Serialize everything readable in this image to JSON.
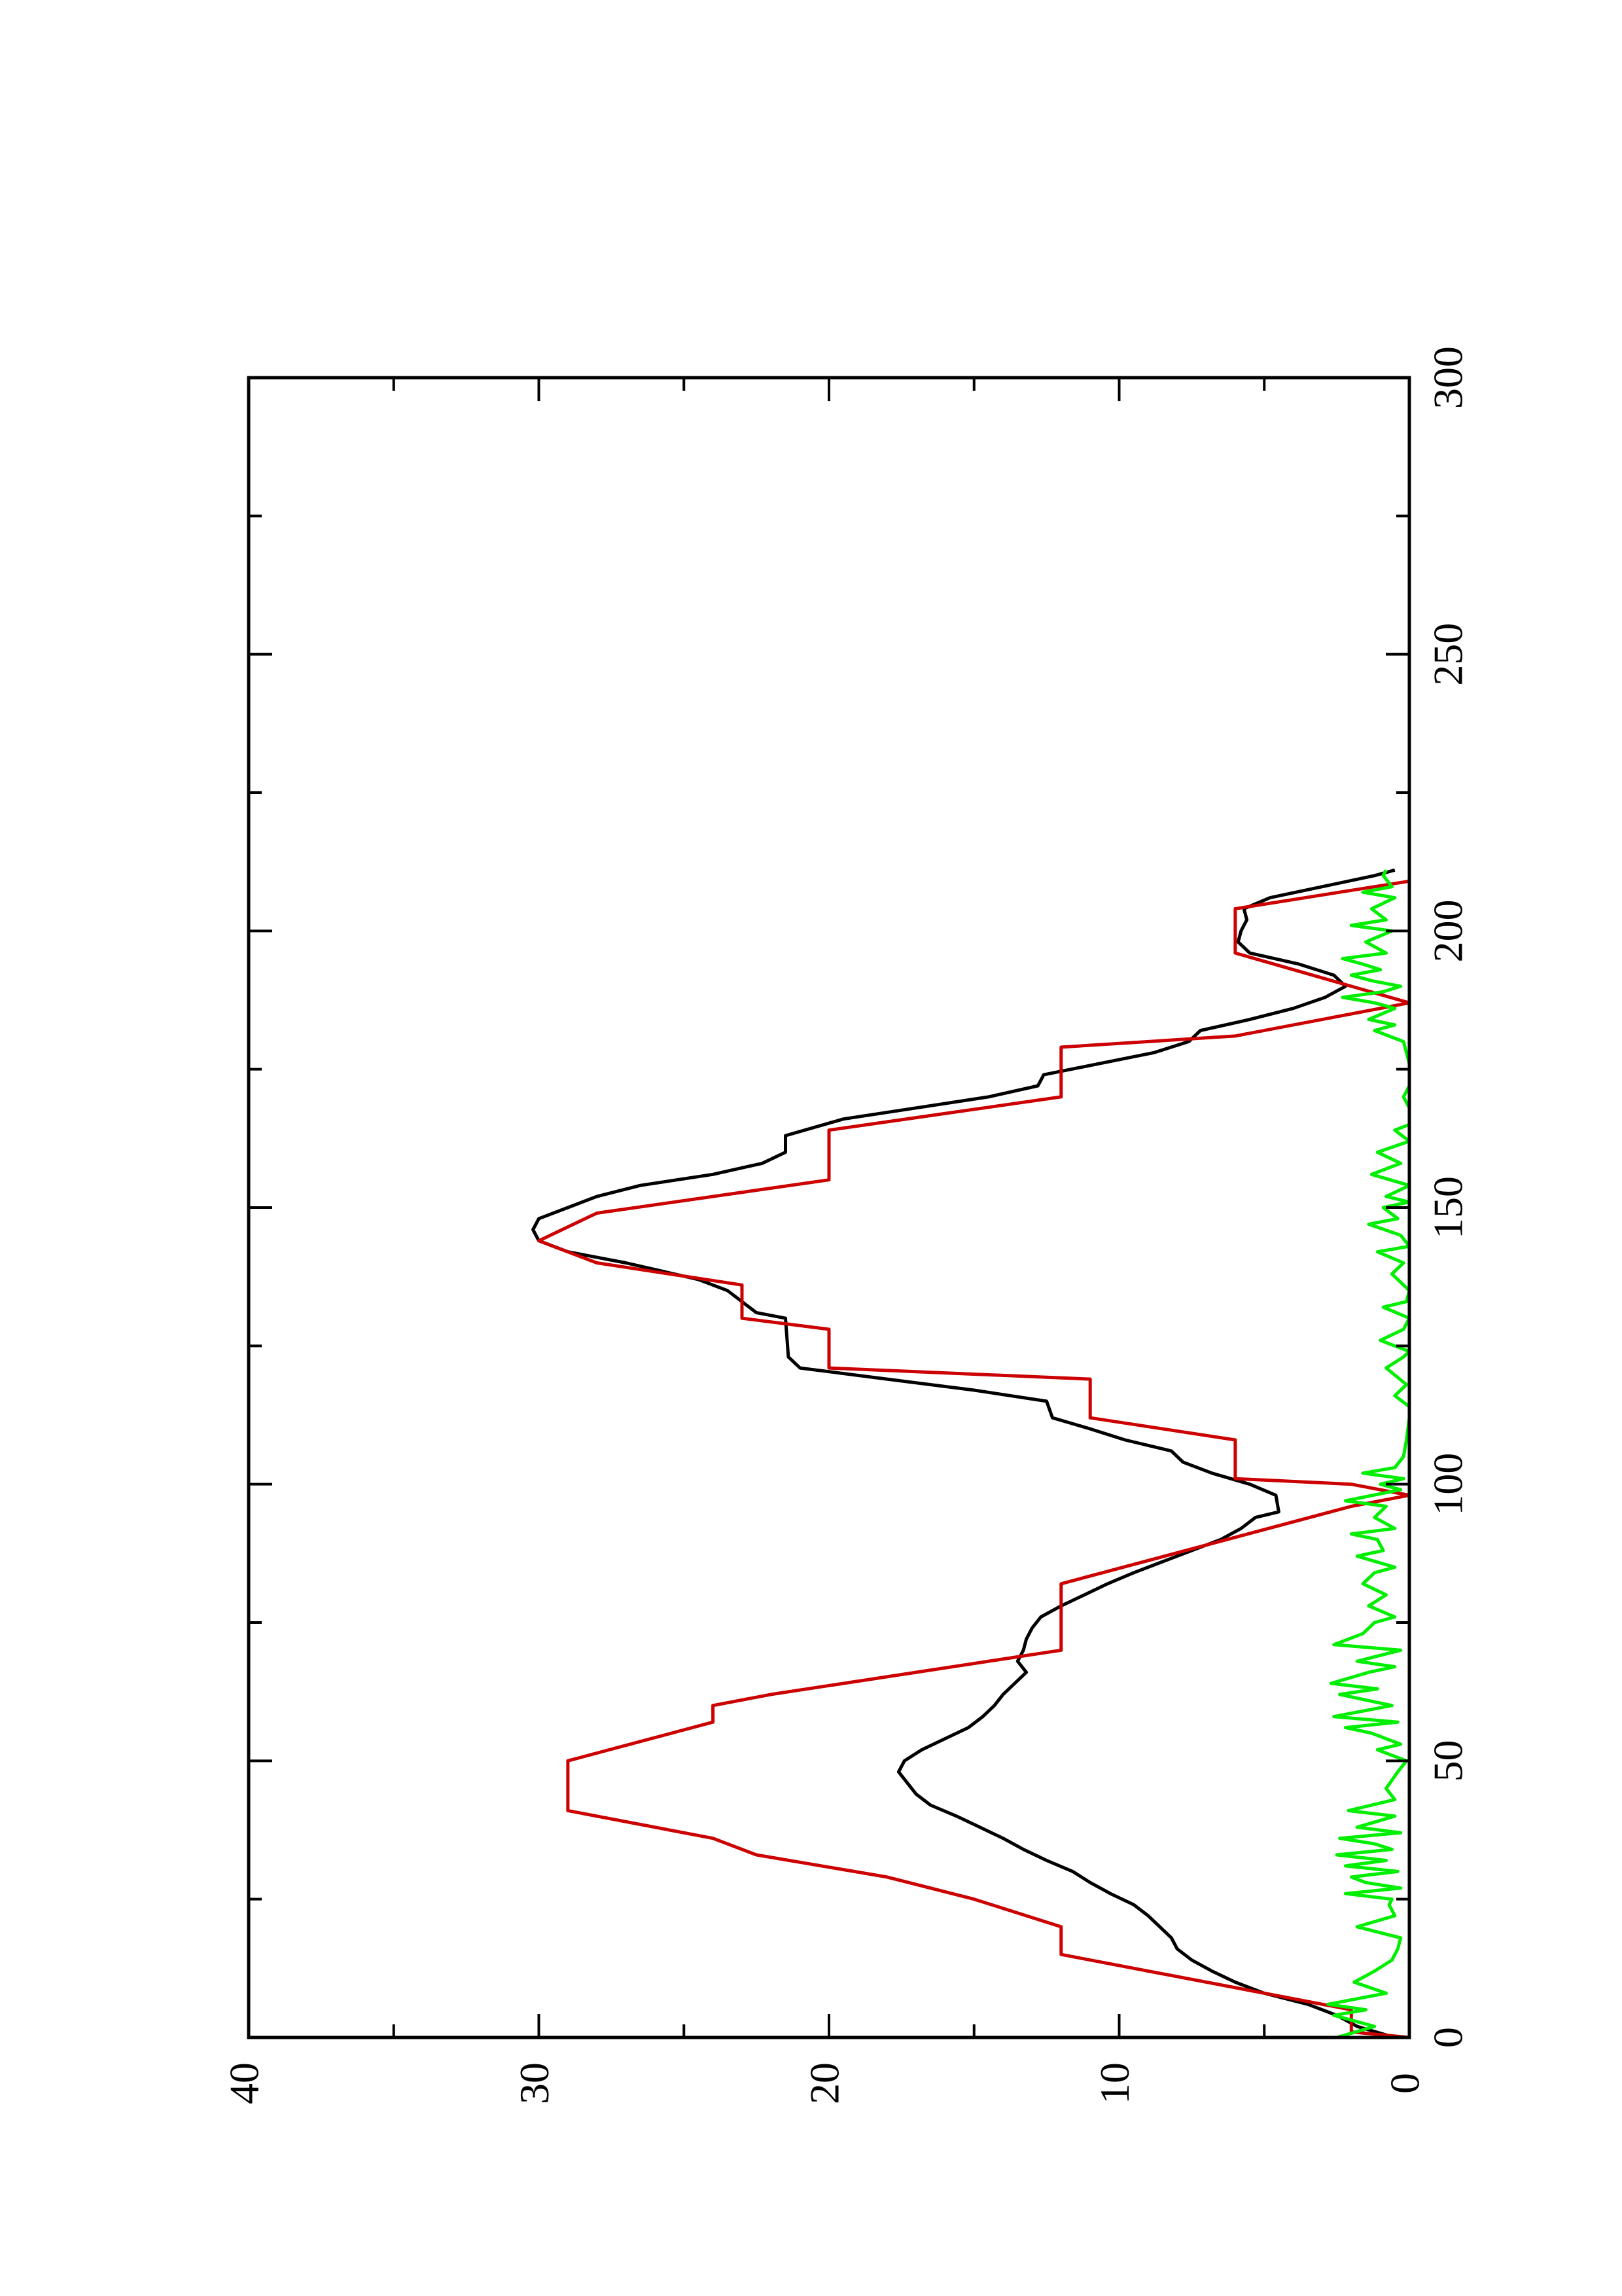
{
  "chart_data": {
    "type": "line",
    "orientation": "rotated-90-ccw",
    "title": "",
    "xlabel": "",
    "ylabel": "",
    "xlim": [
      0,
      300
    ],
    "ylim": [
      0,
      40
    ],
    "x_ticks_major": [
      0,
      50,
      100,
      150,
      200,
      250,
      300
    ],
    "x_tick_labels": [
      "0",
      "50",
      "100",
      "150",
      "200",
      "250",
      "300"
    ],
    "x_ticks_minor": [
      25,
      75,
      125,
      175,
      225,
      275
    ],
    "y_ticks_major": [
      0,
      10,
      20,
      30,
      40
    ],
    "y_tick_labels": [
      "0",
      "10",
      "20",
      "30",
      "40"
    ],
    "y_ticks_minor": [
      5,
      15,
      25,
      35
    ],
    "grid": false,
    "legend": "none",
    "series": [
      {
        "color": "#000000",
        "points": [
          [
            0,
            0.5
          ],
          [
            2,
            1.8
          ],
          [
            4,
            2.5
          ],
          [
            6,
            3.5
          ],
          [
            8,
            5
          ],
          [
            10,
            6
          ],
          [
            12,
            6.8
          ],
          [
            14,
            7.5
          ],
          [
            16,
            8
          ],
          [
            18,
            8.2
          ],
          [
            20,
            8.6
          ],
          [
            22,
            9
          ],
          [
            24,
            9.5
          ],
          [
            26,
            10.3
          ],
          [
            28,
            11
          ],
          [
            30,
            11.6
          ],
          [
            32,
            12.5
          ],
          [
            34,
            13.3
          ],
          [
            36,
            14
          ],
          [
            38,
            14.8
          ],
          [
            40,
            15.6
          ],
          [
            42,
            16.5
          ],
          [
            44,
            17
          ],
          [
            46,
            17.3
          ],
          [
            48,
            17.6
          ],
          [
            50,
            17.4
          ],
          [
            52,
            16.8
          ],
          [
            54,
            16
          ],
          [
            56,
            15.2
          ],
          [
            58,
            14.7
          ],
          [
            60,
            14.3
          ],
          [
            62,
            14
          ],
          [
            64,
            13.6
          ],
          [
            66,
            13.2
          ],
          [
            68,
            13.5
          ],
          [
            70,
            13.3
          ],
          [
            72,
            13.2
          ],
          [
            74,
            13
          ],
          [
            76,
            12.7
          ],
          [
            78,
            12
          ],
          [
            80,
            11.2
          ],
          [
            82,
            10.4
          ],
          [
            84,
            9.5
          ],
          [
            86,
            8.5
          ],
          [
            88,
            7.5
          ],
          [
            90,
            6.5
          ],
          [
            92,
            5.8
          ],
          [
            94,
            5.3
          ],
          [
            95,
            4.5
          ],
          [
            98,
            4.6
          ],
          [
            100,
            5.5
          ],
          [
            102,
            6.8
          ],
          [
            104,
            7.8
          ],
          [
            106,
            8.2
          ],
          [
            108,
            9.8
          ],
          [
            110,
            11
          ],
          [
            112,
            12.3
          ],
          [
            115,
            12.5
          ],
          [
            117,
            15
          ],
          [
            119,
            18
          ],
          [
            121,
            21
          ],
          [
            123,
            21.4
          ],
          [
            130,
            21.5
          ],
          [
            131,
            22.5
          ],
          [
            135,
            23.5
          ],
          [
            137,
            24.5
          ],
          [
            140,
            27
          ],
          [
            142,
            29
          ],
          [
            144,
            30
          ],
          [
            146,
            30.2
          ],
          [
            148,
            30
          ],
          [
            150,
            29
          ],
          [
            152,
            28
          ],
          [
            154,
            26.5
          ],
          [
            156,
            24
          ],
          [
            158,
            22.3
          ],
          [
            160,
            21.5
          ],
          [
            163,
            21.5
          ],
          [
            166,
            19.5
          ],
          [
            168,
            17
          ],
          [
            170,
            14.5
          ],
          [
            172,
            12.8
          ],
          [
            174,
            12.6
          ],
          [
            176,
            10.7
          ],
          [
            178,
            8.8
          ],
          [
            180,
            7.6
          ],
          [
            182,
            7.2
          ],
          [
            184,
            5.5
          ],
          [
            186,
            4
          ],
          [
            188,
            2.9
          ],
          [
            190,
            2.2
          ],
          [
            192,
            2.6
          ],
          [
            194,
            3.8
          ],
          [
            196,
            5.5
          ],
          [
            198,
            5.9
          ],
          [
            200,
            5.8
          ],
          [
            202,
            5.6
          ],
          [
            204,
            5.7
          ],
          [
            206,
            4.8
          ],
          [
            208,
            3
          ],
          [
            210,
            1.2
          ],
          [
            211,
            0.5
          ]
        ]
      },
      {
        "color": "#cc0000",
        "points": [
          [
            0,
            0
          ],
          [
            1,
            2
          ],
          [
            5,
            2
          ],
          [
            15,
            12
          ],
          [
            20,
            12
          ],
          [
            25,
            15
          ],
          [
            29,
            18
          ],
          [
            33,
            22.5
          ],
          [
            36,
            24
          ],
          [
            41,
            29
          ],
          [
            50,
            29
          ],
          [
            57,
            24
          ],
          [
            60,
            24
          ],
          [
            62,
            22
          ],
          [
            70,
            12
          ],
          [
            82,
            12
          ],
          [
            96,
            2
          ],
          [
            98,
            0
          ],
          [
            100,
            2
          ],
          [
            101,
            6
          ],
          [
            108,
            6
          ],
          [
            112,
            11
          ],
          [
            119,
            11
          ],
          [
            121,
            20
          ],
          [
            128,
            20
          ],
          [
            130,
            23
          ],
          [
            136,
            23
          ],
          [
            140,
            28
          ],
          [
            144,
            30
          ],
          [
            149,
            28
          ],
          [
            155,
            20
          ],
          [
            164,
            20
          ],
          [
            170,
            12
          ],
          [
            179,
            12
          ],
          [
            181,
            6
          ],
          [
            187,
            0
          ],
          [
            190,
            2
          ],
          [
            196,
            6
          ],
          [
            204,
            6
          ],
          [
            209,
            0
          ]
        ]
      },
      {
        "color": "#00ee00",
        "points": [
          [
            0,
            2.5
          ],
          [
            2,
            1.2
          ],
          [
            4,
            2.6
          ],
          [
            5,
            1.5
          ],
          [
            6,
            2.8
          ],
          [
            8,
            0.8
          ],
          [
            10,
            1.9
          ],
          [
            12,
            1.2
          ],
          [
            14,
            0.6
          ],
          [
            16,
            0.4
          ],
          [
            18,
            0.3
          ],
          [
            20,
            1.8
          ],
          [
            22,
            0.5
          ],
          [
            24,
            0.7
          ],
          [
            25,
            0.6
          ],
          [
            26,
            2.2
          ],
          [
            27,
            0.3
          ],
          [
            28,
            1.5
          ],
          [
            29,
            2
          ],
          [
            30,
            0.4
          ],
          [
            31,
            2.2
          ],
          [
            32,
            0.8
          ],
          [
            33,
            2.5
          ],
          [
            34,
            0.6
          ],
          [
            35,
            1.2
          ],
          [
            36,
            2.4
          ],
          [
            37,
            0.3
          ],
          [
            38,
            1.8
          ],
          [
            40,
            0.5
          ],
          [
            41,
            2.1
          ],
          [
            43,
            0.5
          ],
          [
            45,
            0.8
          ],
          [
            48,
            0.4
          ],
          [
            50,
            0.1
          ],
          [
            52,
            1.1
          ],
          [
            53,
            0.3
          ],
          [
            55,
            1.3
          ],
          [
            56,
            2.2
          ],
          [
            57,
            0.4
          ],
          [
            58,
            2.6
          ],
          [
            60,
            0.6
          ],
          [
            62,
            2.4
          ],
          [
            63,
            1.1
          ],
          [
            64,
            2.7
          ],
          [
            66,
            1.4
          ],
          [
            67,
            0.5
          ],
          [
            68,
            1.8
          ],
          [
            70,
            0.3
          ],
          [
            71,
            2.6
          ],
          [
            73,
            1.6
          ],
          [
            75,
            1.2
          ],
          [
            76,
            0.5
          ],
          [
            78,
            1.4
          ],
          [
            80,
            0.8
          ],
          [
            82,
            1.6
          ],
          [
            84,
            1.2
          ],
          [
            85,
            0.5
          ],
          [
            87,
            1.8
          ],
          [
            88,
            0.9
          ],
          [
            90,
            1.1
          ],
          [
            91,
            2
          ],
          [
            92,
            0.5
          ],
          [
            94,
            1.2
          ],
          [
            96,
            0.8
          ],
          [
            97,
            2.2
          ],
          [
            99,
            0.3
          ],
          [
            100,
            1
          ],
          [
            101,
            0.2
          ],
          [
            102,
            1.6
          ],
          [
            103,
            0.5
          ],
          [
            105,
            0.2
          ],
          [
            108,
            0.1
          ],
          [
            112,
            0
          ],
          [
            114,
            0
          ],
          [
            116,
            0.5
          ],
          [
            118,
            0.1
          ],
          [
            121,
            0.8
          ],
          [
            123,
            0.2
          ],
          [
            124,
            0
          ],
          [
            126,
            1
          ],
          [
            128,
            0.2
          ],
          [
            130,
            0
          ],
          [
            132,
            0.9
          ],
          [
            133,
            0.1
          ],
          [
            135,
            0
          ],
          [
            138,
            0.6
          ],
          [
            140,
            0.2
          ],
          [
            142,
            1.1
          ],
          [
            143,
            0
          ],
          [
            145,
            0.3
          ],
          [
            147,
            1.4
          ],
          [
            148,
            0.4
          ],
          [
            150,
            0.9
          ],
          [
            151,
            0
          ],
          [
            152,
            0.8
          ],
          [
            154,
            0
          ],
          [
            156,
            1.3
          ],
          [
            158,
            0.3
          ],
          [
            160,
            1.1
          ],
          [
            162,
            0
          ],
          [
            164,
            0.5
          ],
          [
            165,
            0
          ],
          [
            168,
            0
          ],
          [
            170,
            0.2
          ],
          [
            172,
            0
          ],
          [
            176,
            0
          ],
          [
            180,
            0.2
          ],
          [
            182,
            1.2
          ],
          [
            183,
            0.5
          ],
          [
            184,
            1.4
          ],
          [
            186,
            0.5
          ],
          [
            187,
            1.2
          ],
          [
            188,
            2.3
          ],
          [
            189,
            0.9
          ],
          [
            190,
            0.3
          ],
          [
            191,
            1.3
          ],
          [
            192,
            2
          ],
          [
            193,
            1
          ],
          [
            194,
            1.6
          ],
          [
            195,
            2.3
          ],
          [
            196,
            0.8
          ],
          [
            198,
            1.5
          ],
          [
            200,
            0.6
          ],
          [
            201,
            2
          ],
          [
            202,
            0.8
          ],
          [
            204,
            1.3
          ],
          [
            206,
            0.5
          ],
          [
            207,
            1.6
          ],
          [
            208,
            0.6
          ],
          [
            210,
            0.9
          ],
          [
            211,
            0.8
          ]
        ]
      }
    ]
  }
}
